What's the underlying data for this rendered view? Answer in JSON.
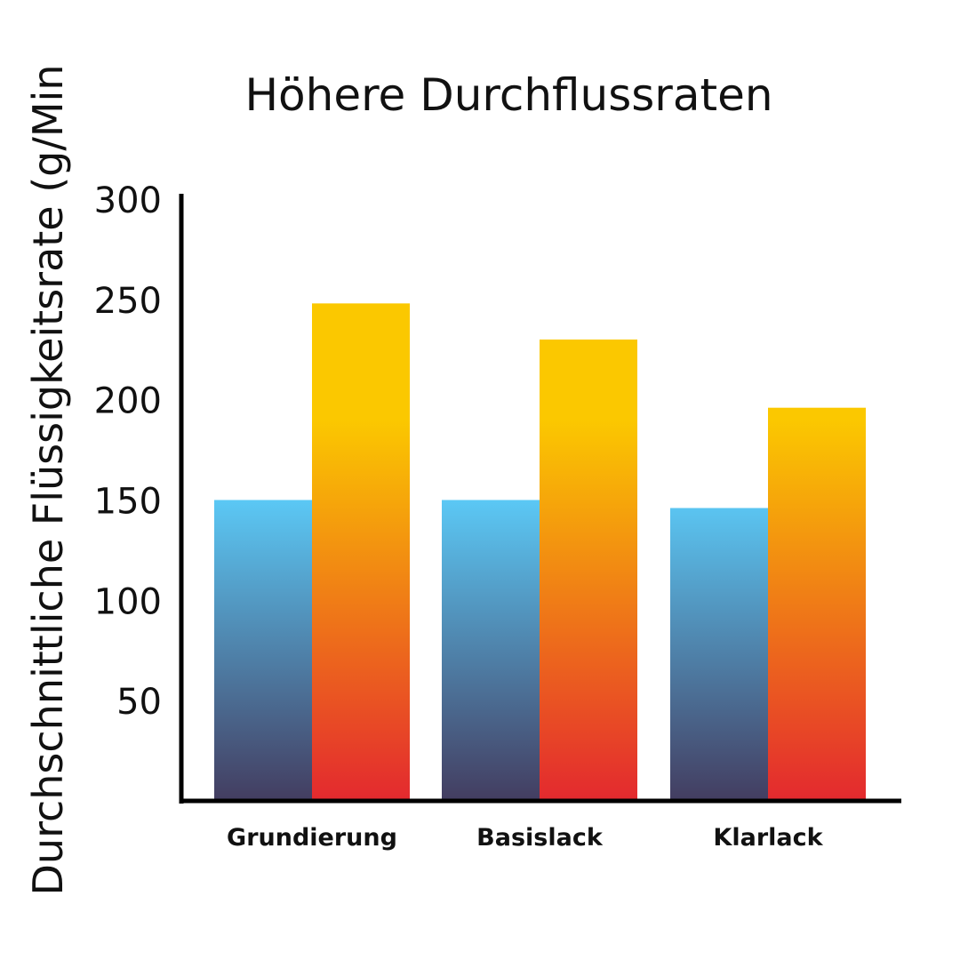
{
  "chart_data": {
    "type": "bar",
    "title": "Höhere Durchflussraten",
    "xlabel": "",
    "ylabel": "Durchschnittliche Flüssigkeitsrate (g/Min",
    "categories": [
      "Grundierung",
      "Basislack",
      "Klarlack"
    ],
    "series": [
      {
        "values": [
          150,
          150,
          146
        ]
      },
      {
        "values": [
          248,
          230,
          196
        ]
      }
    ],
    "ylim": [
      0,
      300
    ],
    "yticks": [
      50,
      100,
      150,
      200,
      250,
      300
    ],
    "grid": false,
    "series_gradients": [
      {
        "top": "#5bc8f5",
        "bottom": "#433d60"
      },
      {
        "top": "#fbc800",
        "bottom": "#e3292f"
      }
    ]
  }
}
